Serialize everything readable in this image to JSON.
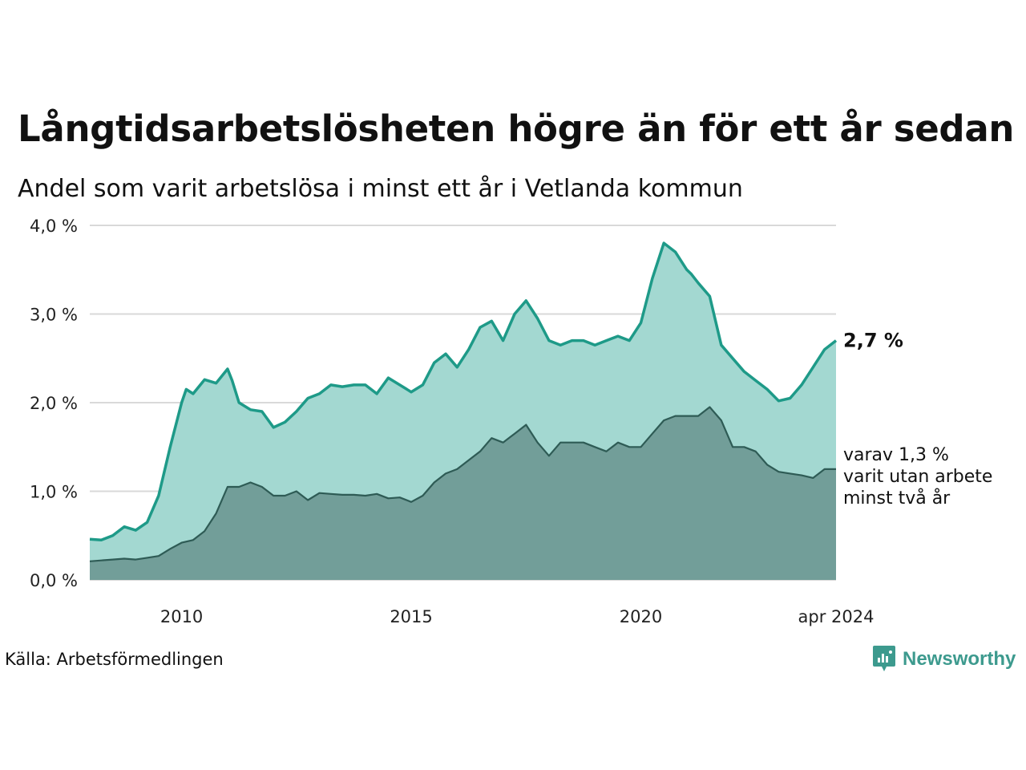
{
  "title": "Långtidsarbetslösheten högre än för ett år sedan",
  "subtitle": "Andel som varit arbetslösa i minst ett år i Vetlanda kommun",
  "source": "Källa: Arbetsförmedlingen",
  "brand": "Newsworthy",
  "colors": {
    "line_main": "#1e9a88",
    "fill_main": "#a3d8d1",
    "line_sub": "#2e5b55",
    "fill_sub": "#729e99",
    "grid": "#d9d9d9",
    "brand": "#3d9a8e"
  },
  "chart_data": {
    "type": "area",
    "title": "Långtidsarbetslösheten högre än för ett år sedan",
    "ylim": [
      0,
      4.0
    ],
    "yticks": [
      0,
      1,
      2,
      3,
      4
    ],
    "ytick_labels": [
      "0,0 %",
      "1,0 %",
      "2,0 %",
      "3,0 %",
      "4,0 %"
    ],
    "xlim": [
      2008.0,
      2024.25
    ],
    "xticks": [
      2010,
      2015,
      2020,
      2024.25
    ],
    "xtick_labels": [
      "2010",
      "2015",
      "2020",
      "apr 2024"
    ],
    "grid": true,
    "end_label": "2,7 %",
    "note_lines": [
      "varav 1,3 %",
      "varit utan arbete",
      "minst två år"
    ],
    "series": [
      {
        "name": "Minst ett år",
        "x": [
          2008.0,
          2008.25,
          2008.5,
          2008.75,
          2009.0,
          2009.25,
          2009.5,
          2009.75,
          2010.0,
          2010.1,
          2010.25,
          2010.5,
          2010.75,
          2011.0,
          2011.1,
          2011.25,
          2011.5,
          2011.75,
          2012.0,
          2012.25,
          2012.5,
          2012.75,
          2013.0,
          2013.25,
          2013.5,
          2013.75,
          2014.0,
          2014.25,
          2014.5,
          2014.75,
          2015.0,
          2015.25,
          2015.5,
          2015.75,
          2016.0,
          2016.25,
          2016.5,
          2016.75,
          2017.0,
          2017.25,
          2017.5,
          2017.75,
          2018.0,
          2018.25,
          2018.5,
          2018.75,
          2019.0,
          2019.25,
          2019.5,
          2019.75,
          2020.0,
          2020.25,
          2020.5,
          2020.75,
          2021.0,
          2021.1,
          2021.25,
          2021.5,
          2021.75,
          2022.0,
          2022.25,
          2022.5,
          2022.75,
          2023.0,
          2023.25,
          2023.5,
          2023.75,
          2024.0,
          2024.25
        ],
        "values": [
          0.46,
          0.45,
          0.5,
          0.6,
          0.56,
          0.65,
          0.95,
          1.5,
          2.0,
          2.15,
          2.1,
          2.26,
          2.22,
          2.38,
          2.25,
          2.0,
          1.92,
          1.9,
          1.72,
          1.78,
          1.9,
          2.05,
          2.1,
          2.2,
          2.18,
          2.2,
          2.2,
          2.1,
          2.28,
          2.2,
          2.12,
          2.2,
          2.45,
          2.55,
          2.4,
          2.6,
          2.85,
          2.92,
          2.7,
          3.0,
          3.15,
          2.95,
          2.7,
          2.65,
          2.7,
          2.7,
          2.65,
          2.7,
          2.75,
          2.7,
          2.9,
          3.4,
          3.8,
          3.7,
          3.5,
          3.45,
          3.35,
          3.2,
          2.65,
          2.5,
          2.35,
          2.25,
          2.15,
          2.02,
          2.05,
          2.2,
          2.4,
          2.6,
          2.7
        ]
      },
      {
        "name": "Minst två år",
        "x": [
          2008.0,
          2008.5,
          2008.75,
          2009.0,
          2009.25,
          2009.5,
          2009.75,
          2010.0,
          2010.25,
          2010.5,
          2010.75,
          2011.0,
          2011.25,
          2011.5,
          2011.75,
          2012.0,
          2012.25,
          2012.5,
          2012.75,
          2013.0,
          2013.25,
          2013.5,
          2013.75,
          2014.0,
          2014.25,
          2014.5,
          2014.75,
          2015.0,
          2015.25,
          2015.5,
          2015.75,
          2016.0,
          2016.25,
          2016.5,
          2016.75,
          2017.0,
          2017.25,
          2017.5,
          2017.75,
          2018.0,
          2018.25,
          2018.5,
          2018.75,
          2019.0,
          2019.25,
          2019.5,
          2019.75,
          2020.0,
          2020.25,
          2020.5,
          2020.75,
          2021.0,
          2021.25,
          2021.5,
          2021.75,
          2022.0,
          2022.25,
          2022.5,
          2022.75,
          2023.0,
          2023.25,
          2023.5,
          2023.75,
          2024.0,
          2024.25
        ],
        "values": [
          0.21,
          0.23,
          0.24,
          0.23,
          0.25,
          0.27,
          0.35,
          0.42,
          0.45,
          0.55,
          0.75,
          1.05,
          1.05,
          1.1,
          1.05,
          0.95,
          0.95,
          1.0,
          0.9,
          0.98,
          0.97,
          0.96,
          0.96,
          0.95,
          0.97,
          0.92,
          0.93,
          0.88,
          0.95,
          1.1,
          1.2,
          1.25,
          1.35,
          1.45,
          1.6,
          1.55,
          1.65,
          1.75,
          1.55,
          1.4,
          1.55,
          1.55,
          1.55,
          1.5,
          1.45,
          1.55,
          1.5,
          1.5,
          1.65,
          1.8,
          1.85,
          1.85,
          1.85,
          1.95,
          1.8,
          1.5,
          1.5,
          1.45,
          1.3,
          1.22,
          1.2,
          1.18,
          1.15,
          1.25,
          1.25
        ]
      }
    ]
  }
}
